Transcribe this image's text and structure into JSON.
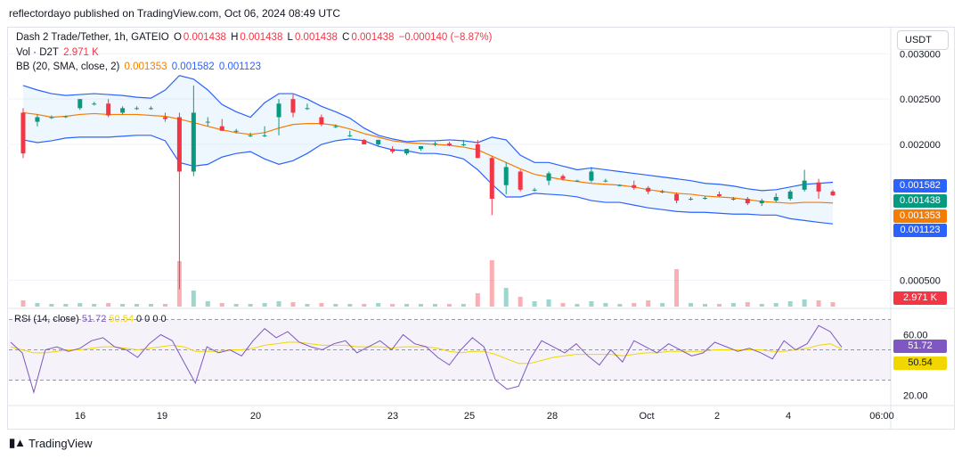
{
  "header": {
    "published_text": "reflectordayo published on TradingView.com, Oct 06, 2024 08:49 UTC"
  },
  "legend": {
    "symbol": "Dash 2 Trade/Tether, 1h, GATEIO",
    "o_label": "O",
    "o_value": "0.001438",
    "h_label": "H",
    "h_value": "0.001438",
    "l_label": "L",
    "l_value": "0.001438",
    "c_label": "C",
    "c_value": "0.001438",
    "change": "−0.000140 (−8.87%)",
    "vol_label": "Vol · D2T",
    "vol_value": "2.971 K",
    "bb_label": "BB (20, SMA, close, 2)",
    "bb_basis": "0.001353",
    "bb_upper": "0.001582",
    "bb_lower": "0.001123"
  },
  "rsi_legend": {
    "label": "RSI (14, close)",
    "rsi_value": "51.72",
    "ma_value": "50.54",
    "zeros": "0 0 0 0"
  },
  "currency_button": "USDT",
  "price_axis": [
    "0.003000",
    "0.002500",
    "0.002000",
    "0.000500"
  ],
  "price_tags": {
    "upper": "0.001582",
    "last": "0.001438",
    "basis": "0.001353",
    "lower": "0.001123",
    "volume": "2.971 K"
  },
  "rsi_axis": [
    "60.00",
    "20.00"
  ],
  "rsi_tags": {
    "rsi": "51.72",
    "ma": "50.54"
  },
  "time_axis": [
    "16",
    "19",
    "20",
    "23",
    "25",
    "28",
    "Oct",
    "2",
    "4",
    "06:00"
  ],
  "brand": "TradingView",
  "colors": {
    "up": "#089981",
    "down": "#f23645",
    "bb_basis": "#f57c00",
    "bb_bands": "#2962ff",
    "rsi": "#7e57c2",
    "rsi_ma": "#f2d600"
  },
  "chart_data": {
    "type": "candlestick",
    "price_ylim": [
      0.0002,
      0.0032
    ],
    "x_range": [
      "Sep 14 12:00",
      "Oct 06 06:00"
    ],
    "candles": [
      {
        "o": 0.00235,
        "h": 0.0024,
        "l": 0.00185,
        "c": 0.0019
      },
      {
        "o": 0.00225,
        "h": 0.00233,
        "l": 0.0022,
        "c": 0.0023
      },
      {
        "o": 0.0023,
        "h": 0.00232,
        "l": 0.00228,
        "c": 0.0023
      },
      {
        "o": 0.0023,
        "h": 0.00232,
        "l": 0.00229,
        "c": 0.00231
      },
      {
        "o": 0.0024,
        "h": 0.0025,
        "l": 0.00238,
        "c": 0.0025
      },
      {
        "o": 0.00245,
        "h": 0.00247,
        "l": 0.00243,
        "c": 0.00245
      },
      {
        "o": 0.00245,
        "h": 0.0025,
        "l": 0.0023,
        "c": 0.00232
      },
      {
        "o": 0.00235,
        "h": 0.00242,
        "l": 0.00233,
        "c": 0.0024
      },
      {
        "o": 0.0024,
        "h": 0.00242,
        "l": 0.00238,
        "c": 0.0024
      },
      {
        "o": 0.0024,
        "h": 0.00242,
        "l": 0.00238,
        "c": 0.0024
      },
      {
        "o": 0.0023,
        "h": 0.00235,
        "l": 0.00225,
        "c": 0.00228
      },
      {
        "o": 0.0023,
        "h": 0.00235,
        "l": 0.0004,
        "c": 0.0017
      },
      {
        "o": 0.0017,
        "h": 0.00265,
        "l": 0.00165,
        "c": 0.00235
      },
      {
        "o": 0.00225,
        "h": 0.0023,
        "l": 0.0022,
        "c": 0.00225
      },
      {
        "o": 0.0022,
        "h": 0.00228,
        "l": 0.00215,
        "c": 0.00215
      },
      {
        "o": 0.00215,
        "h": 0.00217,
        "l": 0.00212,
        "c": 0.00215
      },
      {
        "o": 0.0021,
        "h": 0.00213,
        "l": 0.00208,
        "c": 0.0021
      },
      {
        "o": 0.0021,
        "h": 0.0022,
        "l": 0.00208,
        "c": 0.0021
      },
      {
        "o": 0.0023,
        "h": 0.0025,
        "l": 0.0021,
        "c": 0.00245
      },
      {
        "o": 0.0025,
        "h": 0.00255,
        "l": 0.0023,
        "c": 0.00235
      },
      {
        "o": 0.0024,
        "h": 0.00245,
        "l": 0.00238,
        "c": 0.0024
      },
      {
        "o": 0.0023,
        "h": 0.00233,
        "l": 0.0022,
        "c": 0.00222
      },
      {
        "o": 0.0022,
        "h": 0.00222,
        "l": 0.00218,
        "c": 0.0022
      },
      {
        "o": 0.0021,
        "h": 0.00215,
        "l": 0.00208,
        "c": 0.0021
      },
      {
        "o": 0.00205,
        "h": 0.00206,
        "l": 0.002,
        "c": 0.002
      },
      {
        "o": 0.002,
        "h": 0.00205,
        "l": 0.00198,
        "c": 0.00205
      },
      {
        "o": 0.00195,
        "h": 0.00198,
        "l": 0.0019,
        "c": 0.00192
      },
      {
        "o": 0.0019,
        "h": 0.00195,
        "l": 0.00188,
        "c": 0.00195
      },
      {
        "o": 0.00195,
        "h": 0.00198,
        "l": 0.00193,
        "c": 0.00198
      },
      {
        "o": 0.002,
        "h": 0.00203,
        "l": 0.00198,
        "c": 0.00201
      },
      {
        "o": 0.00201,
        "h": 0.00203,
        "l": 0.00198,
        "c": 0.00199
      },
      {
        "o": 0.002,
        "h": 0.00205,
        "l": 0.00198,
        "c": 0.002
      },
      {
        "o": 0.002,
        "h": 0.00205,
        "l": 0.00185,
        "c": 0.00185
      },
      {
        "o": 0.00185,
        "h": 0.00187,
        "l": 0.00122,
        "c": 0.0014
      },
      {
        "o": 0.00155,
        "h": 0.0018,
        "l": 0.00145,
        "c": 0.00175
      },
      {
        "o": 0.0017,
        "h": 0.00172,
        "l": 0.00148,
        "c": 0.0015
      },
      {
        "o": 0.0015,
        "h": 0.00152,
        "l": 0.00148,
        "c": 0.0015
      },
      {
        "o": 0.0016,
        "h": 0.0017,
        "l": 0.00155,
        "c": 0.00168
      },
      {
        "o": 0.00165,
        "h": 0.00167,
        "l": 0.0016,
        "c": 0.00162
      },
      {
        "o": 0.0016,
        "h": 0.00161,
        "l": 0.00159,
        "c": 0.0016
      },
      {
        "o": 0.0016,
        "h": 0.00175,
        "l": 0.00158,
        "c": 0.0017
      },
      {
        "o": 0.0016,
        "h": 0.00162,
        "l": 0.00158,
        "c": 0.0016
      },
      {
        "o": 0.00155,
        "h": 0.00156,
        "l": 0.00154,
        "c": 0.00155
      },
      {
        "o": 0.00155,
        "h": 0.0016,
        "l": 0.0015,
        "c": 0.00152
      },
      {
        "o": 0.00152,
        "h": 0.00154,
        "l": 0.00145,
        "c": 0.00148
      },
      {
        "o": 0.00148,
        "h": 0.0015,
        "l": 0.00146,
        "c": 0.00148
      },
      {
        "o": 0.00145,
        "h": 0.00147,
        "l": 0.00135,
        "c": 0.00138
      },
      {
        "o": 0.0014,
        "h": 0.00142,
        "l": 0.00138,
        "c": 0.0014
      },
      {
        "o": 0.00141,
        "h": 0.00143,
        "l": 0.00139,
        "c": 0.00141
      },
      {
        "o": 0.00145,
        "h": 0.00148,
        "l": 0.00142,
        "c": 0.00143
      },
      {
        "o": 0.0014,
        "h": 0.00142,
        "l": 0.00138,
        "c": 0.0014
      },
      {
        "o": 0.0014,
        "h": 0.00142,
        "l": 0.00133,
        "c": 0.00135
      },
      {
        "o": 0.00135,
        "h": 0.0014,
        "l": 0.00132,
        "c": 0.00138
      },
      {
        "o": 0.00138,
        "h": 0.00146,
        "l": 0.00136,
        "c": 0.00142
      },
      {
        "o": 0.0014,
        "h": 0.0015,
        "l": 0.00138,
        "c": 0.00148
      },
      {
        "o": 0.0015,
        "h": 0.00172,
        "l": 0.00148,
        "c": 0.0016
      },
      {
        "o": 0.00158,
        "h": 0.00162,
        "l": 0.0014,
        "c": 0.00148
      },
      {
        "o": 0.00148,
        "h": 0.0015,
        "l": 0.00143,
        "c": 0.001438
      }
    ],
    "volume": [
      70,
      40,
      30,
      30,
      40,
      30,
      40,
      30,
      30,
      30,
      30,
      510,
      180,
      60,
      40,
      30,
      30,
      40,
      60,
      50,
      30,
      40,
      30,
      30,
      30,
      40,
      30,
      30,
      30,
      30,
      30,
      30,
      150,
      520,
      210,
      110,
      60,
      80,
      40,
      30,
      60,
      40,
      30,
      40,
      70,
      40,
      420,
      40,
      30,
      30,
      40,
      50,
      30,
      40,
      60,
      80,
      70,
      50
    ],
    "bb_upper": [
      0.00265,
      0.0026,
      0.00256,
      0.00254,
      0.00255,
      0.00256,
      0.00255,
      0.00254,
      0.00252,
      0.00251,
      0.0026,
      0.00276,
      0.00272,
      0.0026,
      0.00244,
      0.00236,
      0.0023,
      0.00246,
      0.00256,
      0.00256,
      0.0025,
      0.00242,
      0.00236,
      0.00229,
      0.00218,
      0.0021,
      0.00206,
      0.00203,
      0.00204,
      0.00204,
      0.00205,
      0.00204,
      0.00202,
      0.00208,
      0.00205,
      0.00188,
      0.0018,
      0.0018,
      0.00176,
      0.00172,
      0.00174,
      0.00172,
      0.0017,
      0.00168,
      0.00166,
      0.00164,
      0.00162,
      0.0016,
      0.00157,
      0.00156,
      0.00154,
      0.00151,
      0.00149,
      0.0015,
      0.00153,
      0.00156,
      0.00157,
      0.001582
    ],
    "bb_basis": [
      0.00235,
      0.00233,
      0.0023,
      0.00231,
      0.00233,
      0.00234,
      0.00233,
      0.00233,
      0.00233,
      0.00232,
      0.00231,
      0.00228,
      0.00224,
      0.0022,
      0.00216,
      0.00213,
      0.00211,
      0.00213,
      0.00218,
      0.00222,
      0.00223,
      0.00223,
      0.00221,
      0.00217,
      0.00212,
      0.00208,
      0.00204,
      0.00202,
      0.00201,
      0.002,
      0.00199,
      0.00197,
      0.00194,
      0.00187,
      0.0018,
      0.00173,
      0.00167,
      0.00164,
      0.00161,
      0.00159,
      0.00157,
      0.00156,
      0.00155,
      0.00153,
      0.0015,
      0.00148,
      0.00146,
      0.00145,
      0.00143,
      0.00142,
      0.00141,
      0.00139,
      0.00137,
      0.00136,
      0.00135,
      0.00136,
      0.00136,
      0.001353
    ],
    "bb_lower": [
      0.00205,
      0.00202,
      0.00204,
      0.00207,
      0.00208,
      0.00208,
      0.00208,
      0.00209,
      0.0021,
      0.0021,
      0.00204,
      0.0018,
      0.00176,
      0.00178,
      0.00186,
      0.0019,
      0.00192,
      0.00184,
      0.00178,
      0.00182,
      0.0019,
      0.002,
      0.00204,
      0.00206,
      0.00204,
      0.00198,
      0.00194,
      0.00193,
      0.0019,
      0.0019,
      0.00188,
      0.00184,
      0.00172,
      0.00156,
      0.00142,
      0.00142,
      0.00146,
      0.00145,
      0.00144,
      0.00142,
      0.00138,
      0.00136,
      0.00136,
      0.00133,
      0.0013,
      0.00128,
      0.00126,
      0.00125,
      0.00125,
      0.00124,
      0.00123,
      0.00123,
      0.00122,
      0.00122,
      0.00118,
      0.00116,
      0.00114,
      0.001123
    ],
    "rsi_ylim": [
      15,
      75
    ],
    "rsi_levels": [
      70,
      50,
      30
    ],
    "rsi": [
      55,
      48,
      22,
      50,
      52,
      49,
      51,
      56,
      58,
      52,
      50,
      45,
      54,
      60,
      56,
      42,
      28,
      52,
      48,
      50,
      46,
      56,
      64,
      58,
      62,
      55,
      52,
      50,
      54,
      56,
      48,
      52,
      56,
      50,
      60,
      54,
      52,
      45,
      40,
      50,
      58,
      52,
      30,
      24,
      26,
      44,
      56,
      52,
      48,
      54,
      46,
      40,
      50,
      42,
      56,
      52,
      48,
      54,
      50,
      46,
      48,
      55,
      52,
      49,
      51,
      48,
      44,
      56,
      50,
      54,
      66,
      62,
      51.72
    ],
    "rsi_ma": [
      52,
      50,
      48,
      48,
      49,
      50,
      50,
      51,
      52,
      52,
      51,
      50,
      51,
      52,
      53,
      52,
      49,
      49,
      49,
      50,
      50,
      51,
      53,
      54,
      55,
      55,
      54,
      53,
      53,
      53,
      52,
      52,
      52,
      51,
      52,
      52,
      52,
      51,
      49,
      48,
      49,
      49,
      47,
      44,
      41,
      41,
      43,
      45,
      46,
      47,
      47,
      47,
      47,
      46,
      47,
      48,
      48,
      49,
      49,
      49,
      49,
      50,
      50,
      50,
      50,
      50,
      49,
      49,
      50,
      51,
      53,
      54,
      50.54
    ]
  }
}
